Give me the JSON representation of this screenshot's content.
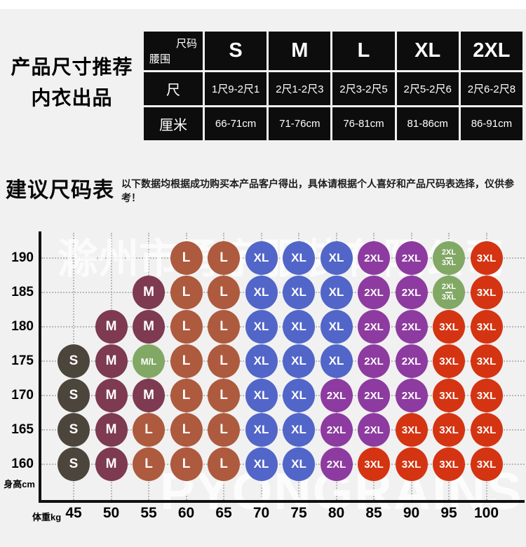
{
  "product_table": {
    "title_line1": "产品尺寸推荐",
    "title_line2": "内衣出品",
    "corner_top": "尺码",
    "corner_bottom": "腰围",
    "size_columns": [
      "S",
      "M",
      "L",
      "XL",
      "2XL"
    ],
    "rows": [
      {
        "label": "尺",
        "cells": [
          "1尺9-2尺1",
          "2尺1-2尺3",
          "2尺3-2尺5",
          "2尺5-2尺6",
          "2尺6-2尺8"
        ]
      },
      {
        "label": "厘米",
        "cells": [
          "66-71cm",
          "71-76cm",
          "76-81cm",
          "81-86cm",
          "86-91cm"
        ]
      }
    ]
  },
  "suggest_section": {
    "title": "建议尺码表",
    "subtitle": "以下数据均根据成功购买本产品客户得出，具体请根据个人喜好和产品尺码表选择，仪供参考！"
  },
  "chart_data": {
    "type": "scatter",
    "title": "建议尺码表",
    "xlabel": "体重kg",
    "ylabel": "身高cm",
    "x_ticks": [
      45,
      50,
      55,
      60,
      65,
      70,
      75,
      80,
      85,
      90,
      95,
      100
    ],
    "y_ticks": [
      190,
      185,
      180,
      175,
      170,
      165,
      160
    ],
    "grid": true,
    "watermark_cn": "滁州市勇宇服装有限公司",
    "watermark_en": "PYONGRAINS",
    "size_colors": {
      "S": "#4b453c",
      "M": "#7d3a50",
      "L": "#ad5a3e",
      "XL": "#5166c8",
      "2XL": "#8d3ba0",
      "3XL": "#d43412",
      "M/L": "#82a865",
      "2XL/3XL": "#82a865"
    },
    "points": [
      {
        "h": 190,
        "w": 60,
        "size": "L"
      },
      {
        "h": 190,
        "w": 65,
        "size": "L"
      },
      {
        "h": 190,
        "w": 70,
        "size": "XL"
      },
      {
        "h": 190,
        "w": 75,
        "size": "XL"
      },
      {
        "h": 190,
        "w": 80,
        "size": "XL"
      },
      {
        "h": 190,
        "w": 85,
        "size": "2XL"
      },
      {
        "h": 190,
        "w": 90,
        "size": "2XL"
      },
      {
        "h": 190,
        "w": 95,
        "size": "2XL/3XL"
      },
      {
        "h": 190,
        "w": 100,
        "size": "3XL"
      },
      {
        "h": 185,
        "w": 55,
        "size": "M"
      },
      {
        "h": 185,
        "w": 60,
        "size": "L"
      },
      {
        "h": 185,
        "w": 65,
        "size": "L"
      },
      {
        "h": 185,
        "w": 70,
        "size": "XL"
      },
      {
        "h": 185,
        "w": 75,
        "size": "XL"
      },
      {
        "h": 185,
        "w": 80,
        "size": "XL"
      },
      {
        "h": 185,
        "w": 85,
        "size": "2XL"
      },
      {
        "h": 185,
        "w": 90,
        "size": "2XL"
      },
      {
        "h": 185,
        "w": 95,
        "size": "2XL/3XL"
      },
      {
        "h": 185,
        "w": 100,
        "size": "3XL"
      },
      {
        "h": 180,
        "w": 50,
        "size": "M"
      },
      {
        "h": 180,
        "w": 55,
        "size": "M"
      },
      {
        "h": 180,
        "w": 60,
        "size": "L"
      },
      {
        "h": 180,
        "w": 65,
        "size": "L"
      },
      {
        "h": 180,
        "w": 70,
        "size": "XL"
      },
      {
        "h": 180,
        "w": 75,
        "size": "XL"
      },
      {
        "h": 180,
        "w": 80,
        "size": "XL"
      },
      {
        "h": 180,
        "w": 85,
        "size": "2XL"
      },
      {
        "h": 180,
        "w": 90,
        "size": "2XL"
      },
      {
        "h": 180,
        "w": 95,
        "size": "3XL"
      },
      {
        "h": 180,
        "w": 100,
        "size": "3XL"
      },
      {
        "h": 175,
        "w": 45,
        "size": "S"
      },
      {
        "h": 175,
        "w": 50,
        "size": "M"
      },
      {
        "h": 175,
        "w": 55,
        "size": "M/L"
      },
      {
        "h": 175,
        "w": 60,
        "size": "L"
      },
      {
        "h": 175,
        "w": 65,
        "size": "L"
      },
      {
        "h": 175,
        "w": 70,
        "size": "XL"
      },
      {
        "h": 175,
        "w": 75,
        "size": "XL"
      },
      {
        "h": 175,
        "w": 80,
        "size": "XL"
      },
      {
        "h": 175,
        "w": 85,
        "size": "2XL"
      },
      {
        "h": 175,
        "w": 90,
        "size": "2XL"
      },
      {
        "h": 175,
        "w": 95,
        "size": "3XL"
      },
      {
        "h": 175,
        "w": 100,
        "size": "3XL"
      },
      {
        "h": 170,
        "w": 45,
        "size": "S"
      },
      {
        "h": 170,
        "w": 50,
        "size": "M"
      },
      {
        "h": 170,
        "w": 55,
        "size": "M"
      },
      {
        "h": 170,
        "w": 60,
        "size": "L"
      },
      {
        "h": 170,
        "w": 65,
        "size": "L"
      },
      {
        "h": 170,
        "w": 70,
        "size": "XL"
      },
      {
        "h": 170,
        "w": 75,
        "size": "XL"
      },
      {
        "h": 170,
        "w": 80,
        "size": "2XL"
      },
      {
        "h": 170,
        "w": 85,
        "size": "2XL"
      },
      {
        "h": 170,
        "w": 90,
        "size": "2XL"
      },
      {
        "h": 170,
        "w": 95,
        "size": "3XL"
      },
      {
        "h": 170,
        "w": 100,
        "size": "3XL"
      },
      {
        "h": 165,
        "w": 45,
        "size": "S"
      },
      {
        "h": 165,
        "w": 50,
        "size": "M"
      },
      {
        "h": 165,
        "w": 55,
        "size": "L"
      },
      {
        "h": 165,
        "w": 60,
        "size": "L"
      },
      {
        "h": 165,
        "w": 65,
        "size": "L"
      },
      {
        "h": 165,
        "w": 70,
        "size": "XL"
      },
      {
        "h": 165,
        "w": 75,
        "size": "XL"
      },
      {
        "h": 165,
        "w": 80,
        "size": "2XL"
      },
      {
        "h": 165,
        "w": 85,
        "size": "2XL"
      },
      {
        "h": 165,
        "w": 90,
        "size": "3XL"
      },
      {
        "h": 165,
        "w": 95,
        "size": "3XL"
      },
      {
        "h": 165,
        "w": 100,
        "size": "3XL"
      },
      {
        "h": 160,
        "w": 45,
        "size": "S"
      },
      {
        "h": 160,
        "w": 50,
        "size": "M"
      },
      {
        "h": 160,
        "w": 55,
        "size": "L"
      },
      {
        "h": 160,
        "w": 60,
        "size": "L"
      },
      {
        "h": 160,
        "w": 65,
        "size": "L"
      },
      {
        "h": 160,
        "w": 70,
        "size": "XL"
      },
      {
        "h": 160,
        "w": 75,
        "size": "XL"
      },
      {
        "h": 160,
        "w": 80,
        "size": "2XL"
      },
      {
        "h": 160,
        "w": 85,
        "size": "3XL"
      },
      {
        "h": 160,
        "w": 90,
        "size": "3XL"
      },
      {
        "h": 160,
        "w": 95,
        "size": "3XL"
      },
      {
        "h": 160,
        "w": 100,
        "size": "3XL"
      }
    ]
  }
}
